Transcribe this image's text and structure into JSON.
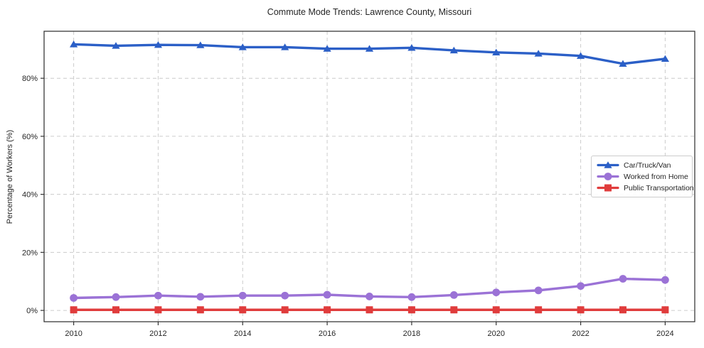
{
  "figure": {
    "background": "#ffffff"
  },
  "style": {
    "grid_color": "#cccccc",
    "spine_color": "#2a2a2a",
    "tick_color": "#333333",
    "text_color": "#262626",
    "legend_border": "#cccccc"
  },
  "chart_data": {
    "type": "line",
    "title": "Commute Mode Trends: Lawrence County, Missouri",
    "xlabel": "",
    "ylabel": "Percentage of Workers (%)",
    "x": [
      2010,
      2011,
      2012,
      2013,
      2014,
      2015,
      2016,
      2017,
      2018,
      2019,
      2020,
      2021,
      2022,
      2023,
      2024
    ],
    "xticks": [
      2010,
      2012,
      2014,
      2016,
      2018,
      2020,
      2022,
      2024
    ],
    "xtick_labels": [
      "2010",
      "2012",
      "2014",
      "2016",
      "2018",
      "2020",
      "2022",
      "2024"
    ],
    "yticks": [
      0,
      20,
      40,
      60,
      80
    ],
    "ytick_labels": [
      "0%",
      "20%",
      "40%",
      "60%",
      "80%"
    ],
    "xlim": [
      2009.3,
      2024.7
    ],
    "ylim": [
      -3.9,
      96.2
    ],
    "grid": true,
    "grid_style": "dashed",
    "legend_position": "center-right",
    "series": [
      {
        "name": "Car/Truck/Van",
        "color": "#2b5fc7",
        "marker": "triangle",
        "values": [
          91.7,
          91.2,
          91.5,
          91.4,
          90.7,
          90.7,
          90.2,
          90.2,
          90.5,
          89.6,
          88.9,
          88.5,
          87.7,
          85.0,
          86.7
        ]
      },
      {
        "name": "Worked from Home",
        "color": "#9b72d6",
        "marker": "circle",
        "values": [
          4.3,
          4.6,
          5.1,
          4.7,
          5.1,
          5.1,
          5.4,
          4.8,
          4.6,
          5.3,
          6.2,
          6.9,
          8.4,
          10.9,
          10.5
        ]
      },
      {
        "name": "Public Transportation",
        "color": "#e03c3c",
        "marker": "square",
        "values": [
          0.2,
          0.2,
          0.2,
          0.2,
          0.2,
          0.2,
          0.2,
          0.2,
          0.2,
          0.2,
          0.2,
          0.2,
          0.2,
          0.2,
          0.2
        ]
      }
    ]
  }
}
